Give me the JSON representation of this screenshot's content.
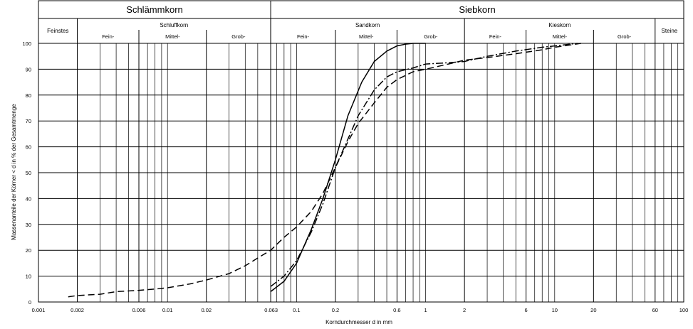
{
  "chart_data": {
    "type": "line",
    "title": "",
    "xlabel": "Korndurchmesser d in mm",
    "ylabel": "Massenanteile der Körner < d in % der Gesamtmenge",
    "x_scale": "log",
    "xlim": [
      0.001,
      100
    ],
    "ylim": [
      0,
      100
    ],
    "grid": true,
    "legend": "none",
    "x_tick_labels": [
      {
        "value": 0.001,
        "label": "0.001"
      },
      {
        "value": 0.002,
        "label": "0.002"
      },
      {
        "value": 0.006,
        "label": "0.006"
      },
      {
        "value": 0.01,
        "label": "0.01"
      },
      {
        "value": 0.02,
        "label": "0.02"
      },
      {
        "value": 0.063,
        "label": "0.063"
      },
      {
        "value": 0.1,
        "label": "0.1"
      },
      {
        "value": 0.2,
        "label": "0.2"
      },
      {
        "value": 0.6,
        "label": "0.6"
      },
      {
        "value": 1,
        "label": "1"
      },
      {
        "value": 2,
        "label": "2"
      },
      {
        "value": 6,
        "label": "6"
      },
      {
        "value": 10,
        "label": "10"
      },
      {
        "value": 20,
        "label": "20"
      },
      {
        "value": 60,
        "label": "60"
      },
      {
        "value": 100,
        "label": "100"
      }
    ],
    "y_ticks": [
      0,
      10,
      20,
      30,
      40,
      50,
      60,
      70,
      80,
      90,
      100
    ],
    "major_x_lines": [
      0.002,
      0.006,
      0.02,
      0.063,
      0.2,
      0.6,
      2,
      6,
      20,
      60
    ],
    "minor_x_lines": [
      0.003,
      0.004,
      0.005,
      0.007,
      0.008,
      0.009,
      0.01,
      0.03,
      0.04,
      0.05,
      0.07,
      0.08,
      0.09,
      0.1,
      0.3,
      0.4,
      0.5,
      0.7,
      0.8,
      0.9,
      1,
      3,
      4,
      5,
      7,
      8,
      9,
      10,
      30,
      40,
      50,
      70,
      80,
      90
    ],
    "header": {
      "groups": [
        {
          "label": "Schlämmkorn",
          "from": 0.001,
          "to": 0.063
        },
        {
          "label": "Siebkorn",
          "from": 0.063,
          "to": 100
        }
      ],
      "fractions": [
        {
          "label": "Feinstes",
          "from": 0.001,
          "to": 0.002
        },
        {
          "label": "Schluffkorn",
          "from": 0.002,
          "to": 0.063,
          "subs": [
            {
              "label": "Fein-",
              "from": 0.002,
              "to": 0.006
            },
            {
              "label": "Mittel-",
              "from": 0.006,
              "to": 0.02
            },
            {
              "label": "Grob-",
              "from": 0.02,
              "to": 0.063
            }
          ]
        },
        {
          "label": "Sandkorn",
          "from": 0.063,
          "to": 2,
          "subs": [
            {
              "label": "Fein-",
              "from": 0.063,
              "to": 0.2
            },
            {
              "label": "Mittel-",
              "from": 0.2,
              "to": 0.6
            },
            {
              "label": "Grob-",
              "from": 0.6,
              "to": 2
            }
          ]
        },
        {
          "label": "Kieskorn",
          "from": 2,
          "to": 60,
          "subs": [
            {
              "label": "Fein-",
              "from": 2,
              "to": 6
            },
            {
              "label": "Mittel-",
              "from": 6,
              "to": 20
            },
            {
              "label": "Grob-",
              "from": 20,
              "to": 60
            }
          ]
        },
        {
          "label": "Steine",
          "from": 60,
          "to": 100
        }
      ]
    },
    "series": [
      {
        "style": "solid",
        "x": [
          0.063,
          0.08,
          0.1,
          0.13,
          0.16,
          0.2,
          0.25,
          0.32,
          0.4,
          0.5,
          0.6,
          0.7,
          0.8,
          1.0
        ],
        "y": [
          4,
          8,
          15,
          28,
          40,
          55,
          72,
          85,
          93,
          97,
          99,
          99.7,
          100,
          100
        ]
      },
      {
        "style": "dash-dot",
        "x": [
          0.063,
          0.08,
          0.1,
          0.13,
          0.16,
          0.2,
          0.25,
          0.3,
          0.4,
          0.5,
          0.6,
          0.8,
          1,
          1.5,
          2,
          3,
          5,
          8,
          10,
          15
        ],
        "y": [
          6,
          10,
          16,
          27,
          38,
          52,
          63,
          72,
          82,
          87,
          89,
          90.5,
          92,
          92.5,
          93,
          95,
          97,
          98.5,
          99,
          100
        ]
      },
      {
        "style": "dashed",
        "x": [
          0.0017,
          0.002,
          0.003,
          0.004,
          0.006,
          0.008,
          0.01,
          0.015,
          0.02,
          0.03,
          0.04,
          0.05,
          0.063,
          0.08,
          0.1,
          0.13,
          0.16,
          0.2,
          0.25,
          0.3,
          0.4,
          0.5,
          0.6,
          0.8,
          1.0,
          1.5,
          2,
          3,
          5,
          8,
          10,
          16
        ],
        "y": [
          2,
          2.5,
          3,
          4,
          4.5,
          5,
          5.5,
          7,
          8.5,
          11,
          14,
          17,
          20,
          25,
          29,
          35,
          42,
          52,
          62,
          69,
          77,
          83,
          86,
          89,
          90,
          92,
          93.5,
          94.5,
          96,
          97.5,
          98.5,
          100
        ]
      }
    ]
  }
}
